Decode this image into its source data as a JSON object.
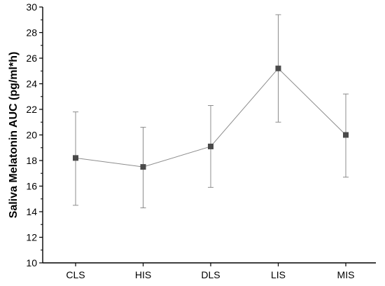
{
  "chart_data": {
    "type": "line",
    "title": "",
    "xlabel": "",
    "ylabel": "Saliva Melatonin AUC (pg/ml*h)",
    "categories": [
      "CLS",
      "HIS",
      "DLS",
      "LIS",
      "MIS"
    ],
    "values": [
      18.2,
      17.5,
      19.1,
      25.2,
      20.0
    ],
    "error_low": [
      14.5,
      14.3,
      15.9,
      21.0,
      16.7
    ],
    "error_high": [
      21.8,
      20.6,
      22.3,
      29.4,
      23.2
    ],
    "ylim": [
      10,
      30
    ],
    "yticks": [
      "10",
      "12",
      "14",
      "16",
      "18",
      "20",
      "22",
      "24",
      "26",
      "28",
      "30"
    ],
    "grid": false,
    "legend": "none",
    "colors": {
      "marker": "#4a4a4a",
      "line": "#8c8c8c",
      "error_bar": "#8c8c8c"
    }
  }
}
